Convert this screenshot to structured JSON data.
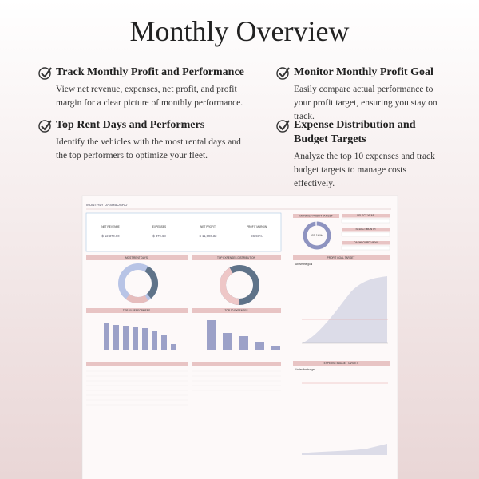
{
  "header": {
    "title": "Monthly Overview"
  },
  "features": [
    {
      "title": "Track Monthly Profit and Performance",
      "text": "View net revenue, expenses, net profit, and profit margin for a clear picture of monthly performance."
    },
    {
      "title": "Monitor Monthly Profit Goal",
      "text": "Easily compare actual performance to your profit target, ensuring you stay on track."
    },
    {
      "title": "Top Rent Days and Performers",
      "text": "Identify the vehicles with the most rental days and the top performers to optimize your fleet."
    },
    {
      "title": "Expense Distribution and Budget Targets",
      "text": "Analyze the top 10 expenses and track budget targets to manage costs effectively."
    }
  ],
  "dashboard": {
    "title": "MONTHLY DASHBOARD",
    "kpis": [
      {
        "label": "NET REVENUE",
        "value": "$ 12,370.00"
      },
      {
        "label": "EXPENSES",
        "value": "$ 379.68"
      },
      {
        "label": "NET PROFIT",
        "value": "$ 11,990.32"
      },
      {
        "label": "PROFIT MARGIN",
        "value": "96.93%"
      }
    ],
    "gauge_title": "MONTHLY PROFIT TARGET",
    "gauge_value": "97.16%",
    "selectors": [
      "SELECT YEAR",
      "SELECT MONTH",
      "DASHBOARD VIEW"
    ],
    "panels": [
      "MOST RENT DAYS",
      "TOP EXPENSES DISTRIBUTION",
      "PROFIT GOAL TARGET",
      "TOP 10 PERFORMERS",
      "TOP 10 EXPENSES",
      "EXPENSE BUDGET TARGET"
    ],
    "goal_status": "Above the goal",
    "budget_status": "Under the budget"
  }
}
